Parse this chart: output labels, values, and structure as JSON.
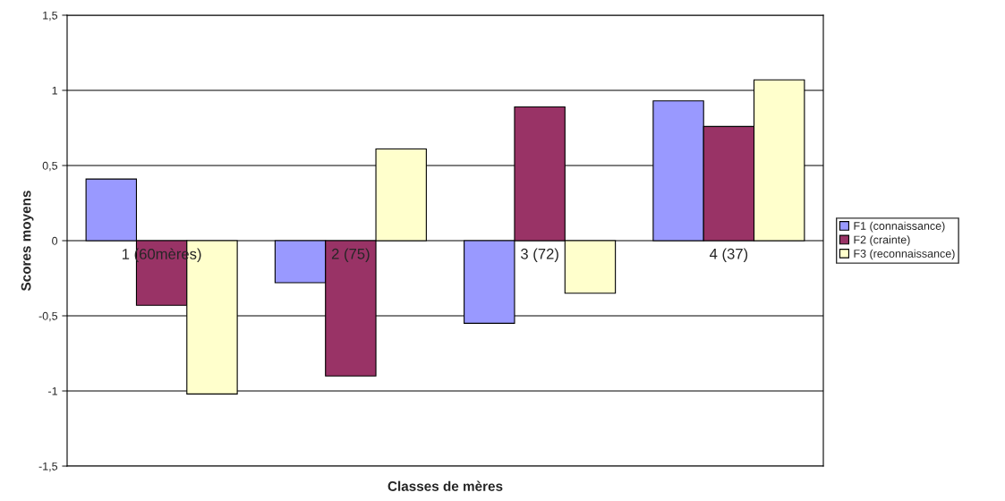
{
  "chart_data": {
    "type": "bar",
    "xlabel": "Classes de mères",
    "ylabel": "Scores moyens",
    "categories": [
      "1 (60mères)",
      "2 (75)",
      "3 (72)",
      "4 (37)"
    ],
    "series": [
      {
        "name": "F1 (connaissance)",
        "color": "#9999ff",
        "values": [
          0.41,
          -0.28,
          -0.55,
          0.93
        ]
      },
      {
        "name": "F2 (crainte)",
        "color": "#993366",
        "values": [
          -0.43,
          -0.9,
          0.89,
          0.76
        ]
      },
      {
        "name": "F3 (reconnaissance)",
        "color": "#ffffcc",
        "values": [
          -1.02,
          0.61,
          -0.35,
          1.07
        ]
      }
    ],
    "ylim": [
      -1.5,
      1.5
    ],
    "yticks": [
      {
        "value": -1.5,
        "label": "-1,5"
      },
      {
        "value": -1,
        "label": "-1"
      },
      {
        "value": -0.5,
        "label": "-0,5"
      },
      {
        "value": 0,
        "label": "0"
      },
      {
        "value": 0.5,
        "label": "0,5"
      },
      {
        "value": 1,
        "label": "1"
      },
      {
        "value": 1.5,
        "label": "1,5"
      }
    ],
    "grid": "y",
    "legend": "right"
  }
}
